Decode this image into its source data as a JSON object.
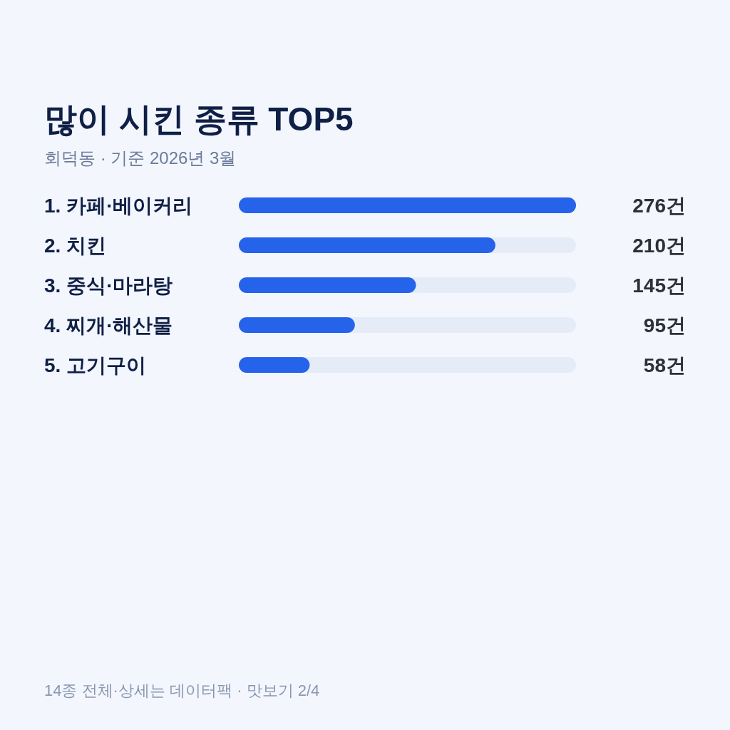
{
  "chart_data": {
    "type": "bar",
    "orientation": "horizontal",
    "title": "많이 시킨 종류 TOP5",
    "subtitle": "회덕동 · 기준 2026년 3월",
    "categories": [
      "1. 카페·베이커리",
      "2. 치킨",
      "3. 중식·마라탕",
      "4. 찌개·해산물",
      "5. 고기구이"
    ],
    "values": [
      276,
      210,
      145,
      95,
      58
    ],
    "value_labels": [
      "276건",
      "210건",
      "145건",
      "95건",
      "58건"
    ],
    "color": "#2563eb",
    "annotations": [
      "14종 전체·상세는 데이터팩 · 맛보기 2/4"
    ]
  }
}
